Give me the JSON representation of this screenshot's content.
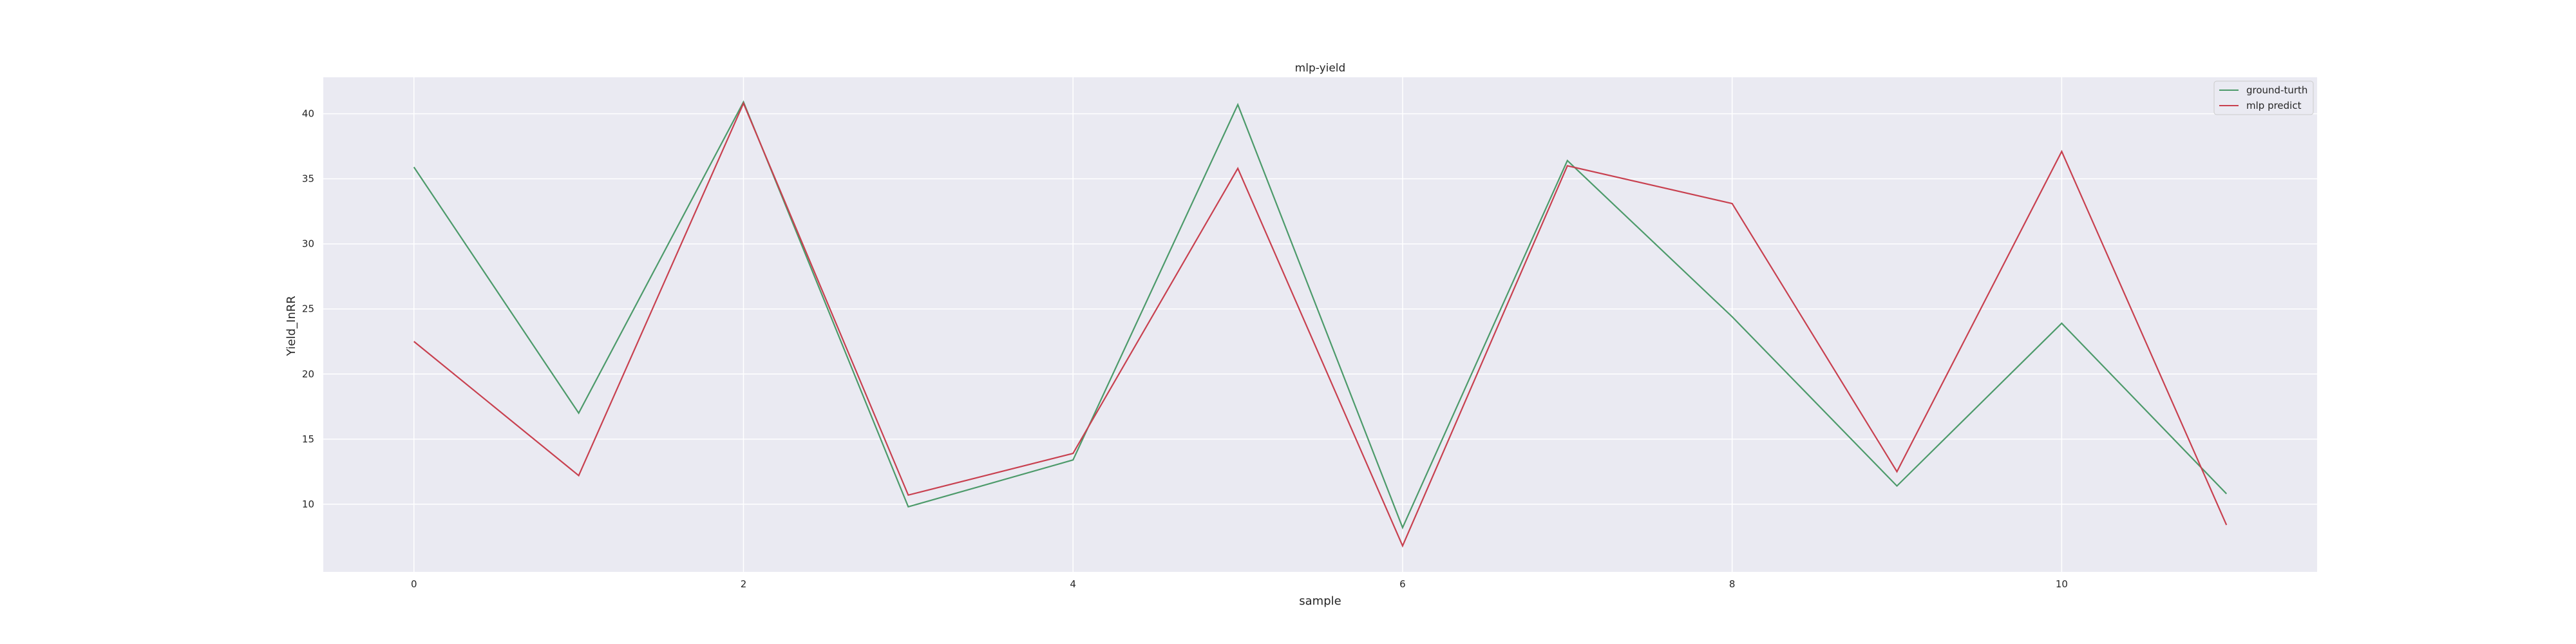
{
  "chart_data": {
    "type": "line",
    "title": "mlp-yield",
    "xlabel": "sample",
    "ylabel": "Yield_InRR",
    "x": [
      0,
      1,
      2,
      3,
      4,
      5,
      6,
      7,
      8,
      9,
      10,
      11
    ],
    "xlim": [
      -0.55,
      11.55
    ],
    "ylim": [
      4.8,
      42.8
    ],
    "xticks": [
      0,
      2,
      4,
      6,
      8,
      10
    ],
    "yticks": [
      10,
      15,
      20,
      25,
      30,
      35,
      40
    ],
    "grid": true,
    "legend_position": "top-right",
    "series": [
      {
        "name": "ground-turth",
        "color": "#4c9a6a",
        "values": [
          35.9,
          17.0,
          40.9,
          9.8,
          13.4,
          40.7,
          8.2,
          36.4,
          24.4,
          11.4,
          23.9,
          10.8
        ]
      },
      {
        "name": "mlp predict",
        "color": "#c8404f",
        "values": [
          22.5,
          12.2,
          40.8,
          10.7,
          13.9,
          35.8,
          6.8,
          36.0,
          33.1,
          12.5,
          37.1,
          8.4
        ]
      }
    ],
    "colors": {
      "plot_background": "#eaeaf2",
      "grid": "#ffffff"
    }
  }
}
